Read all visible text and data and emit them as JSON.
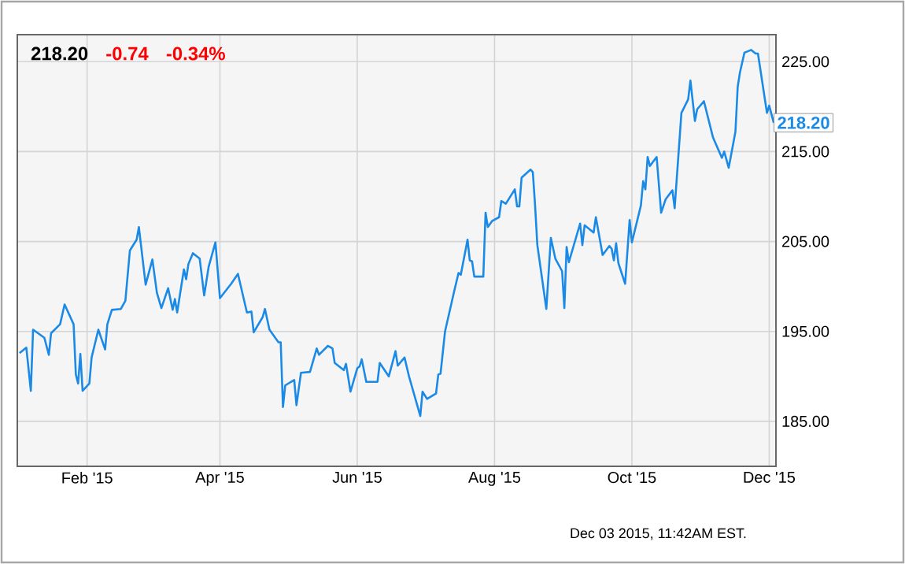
{
  "chart_data": {
    "type": "line",
    "title": "218.20",
    "annotations": [
      "-0.74",
      "-0.34%",
      "Dec 03 2015, 11:42AM EST.",
      {
        "text": "218.20",
        "x": "2015-12-03",
        "y": 218.2
      }
    ],
    "color": "#1a8ae6",
    "grid": true,
    "xlim": [
      "2015-01-01",
      "2015-12-04"
    ],
    "ylim": [
      180,
      228
    ],
    "xticks": [
      {
        "value": "2015-02-01",
        "label": "Feb '15"
      },
      {
        "value": "2015-04-01",
        "label": "Apr '15"
      },
      {
        "value": "2015-06-01",
        "label": "Jun '15"
      },
      {
        "value": "2015-08-01",
        "label": "Aug '15"
      },
      {
        "value": "2015-10-01",
        "label": "Oct '15"
      },
      {
        "value": "2015-12-01",
        "label": "Dec '15"
      }
    ],
    "yticks": [
      {
        "value": 185,
        "label": "185.00"
      },
      {
        "value": 195,
        "label": "195.00"
      },
      {
        "value": 205,
        "label": "205.00"
      },
      {
        "value": 215,
        "label": "215.00"
      },
      {
        "value": 225,
        "label": "225.00"
      }
    ],
    "x": [
      "2015-01-02",
      "2015-01-05",
      "2015-01-07",
      "2015-01-08",
      "2015-01-13",
      "2015-01-15",
      "2015-01-16",
      "2015-01-20",
      "2015-01-22",
      "2015-01-26",
      "2015-01-27",
      "2015-01-28",
      "2015-01-29",
      "2015-01-30",
      "2015-02-02",
      "2015-02-03",
      "2015-02-06",
      "2015-02-09",
      "2015-02-10",
      "2015-02-12",
      "2015-02-16",
      "2015-02-18",
      "2015-02-20",
      "2015-02-23",
      "2015-02-24",
      "2015-02-27",
      "2015-03-02",
      "2015-03-04",
      "2015-03-06",
      "2015-03-09",
      "2015-03-11",
      "2015-03-12",
      "2015-03-13",
      "2015-03-16",
      "2015-03-17",
      "2015-03-18",
      "2015-03-20",
      "2015-03-23",
      "2015-03-25",
      "2015-03-27",
      "2015-03-30",
      "2015-04-01",
      "2015-04-06",
      "2015-04-09",
      "2015-04-13",
      "2015-04-15",
      "2015-04-16",
      "2015-04-20",
      "2015-04-21",
      "2015-04-23",
      "2015-04-27",
      "2015-04-28",
      "2015-04-29",
      "2015-04-30",
      "2015-05-04",
      "2015-05-05",
      "2015-05-07",
      "2015-05-11",
      "2015-05-14",
      "2015-05-15",
      "2015-05-19",
      "2015-05-21",
      "2015-05-22",
      "2015-05-26",
      "2015-05-27",
      "2015-05-29",
      "2015-06-01",
      "2015-06-02",
      "2015-06-03",
      "2015-06-05",
      "2015-06-10",
      "2015-06-11",
      "2015-06-15",
      "2015-06-18",
      "2015-06-19",
      "2015-06-22",
      "2015-06-24",
      "2015-06-29",
      "2015-06-30",
      "2015-07-02",
      "2015-07-06",
      "2015-07-07",
      "2015-07-08",
      "2015-07-10",
      "2015-07-14",
      "2015-07-16",
      "2015-07-17",
      "2015-07-20",
      "2015-07-21",
      "2015-07-22",
      "2015-07-23",
      "2015-07-27",
      "2015-07-28",
      "2015-07-29",
      "2015-07-31",
      "2015-08-03",
      "2015-08-04",
      "2015-08-06",
      "2015-08-10",
      "2015-08-11",
      "2015-08-12",
      "2015-08-13",
      "2015-08-17",
      "2015-08-18",
      "2015-08-19",
      "2015-08-20",
      "2015-08-24",
      "2015-08-26",
      "2015-08-28",
      "2015-08-31",
      "2015-09-01",
      "2015-09-02",
      "2015-09-03",
      "2015-09-08",
      "2015-09-09",
      "2015-09-10",
      "2015-09-14",
      "2015-09-15",
      "2015-09-18",
      "2015-09-21",
      "2015-09-22",
      "2015-09-23",
      "2015-09-24",
      "2015-09-25",
      "2015-09-28",
      "2015-09-30",
      "2015-10-01",
      "2015-10-05",
      "2015-10-06",
      "2015-10-07",
      "2015-10-08",
      "2015-10-09",
      "2015-10-12",
      "2015-10-14",
      "2015-10-16",
      "2015-10-19",
      "2015-10-20",
      "2015-10-23",
      "2015-10-26",
      "2015-10-27",
      "2015-10-29",
      "2015-10-30",
      "2015-11-02",
      "2015-11-06",
      "2015-11-10",
      "2015-11-11",
      "2015-11-13",
      "2015-11-16",
      "2015-11-17",
      "2015-11-18",
      "2015-11-20",
      "2015-11-23",
      "2015-11-25",
      "2015-11-26",
      "2015-11-30",
      "2015-12-01",
      "2015-12-03"
    ],
    "values": [
      192.6,
      193.2,
      188.4,
      195.2,
      194.3,
      192.4,
      194.8,
      195.8,
      198.0,
      195.8,
      190.2,
      189.2,
      192.5,
      188.4,
      189.2,
      192.1,
      195.2,
      193.0,
      195.8,
      197.4,
      197.5,
      198.4,
      204.0,
      205.2,
      206.6,
      200.2,
      203.0,
      199.3,
      197.6,
      199.8,
      197.4,
      198.6,
      197.1,
      201.9,
      200.8,
      202.5,
      203.7,
      203.1,
      199.0,
      202.2,
      204.9,
      198.7,
      200.3,
      201.4,
      197.1,
      197.2,
      194.9,
      196.6,
      197.5,
      195.2,
      193.8,
      193.8,
      186.6,
      189.0,
      189.6,
      186.8,
      190.4,
      190.5,
      193.1,
      192.4,
      193.4,
      193.1,
      191.5,
      190.7,
      191.4,
      188.3,
      190.9,
      191.1,
      191.9,
      189.4,
      189.4,
      191.5,
      190.0,
      192.8,
      191.2,
      192.1,
      190.0,
      185.6,
      188.3,
      187.5,
      188.1,
      190.2,
      190.3,
      195.0,
      199.4,
      201.5,
      201.3,
      205.2,
      202.9,
      202.8,
      201.1,
      201.1,
      208.2,
      206.6,
      207.3,
      207.7,
      209.5,
      209.2,
      210.8,
      208.9,
      208.9,
      212.1,
      213.0,
      212.7,
      209.0,
      204.6,
      197.5,
      205.4,
      203.1,
      201.7,
      197.6,
      204.4,
      202.7,
      207.0,
      204.6,
      206.8,
      206.0,
      207.7,
      203.5,
      204.5,
      204.2,
      202.9,
      204.8,
      202.6,
      200.3,
      207.4,
      204.9,
      209.0,
      211.7,
      210.8,
      214.4,
      213.4,
      214.4,
      208.2,
      209.7,
      210.7,
      208.7,
      219.3,
      220.8,
      222.9,
      218.4,
      219.7,
      220.6,
      216.6,
      214.3,
      215.0,
      213.2,
      217.2,
      222.2,
      223.8,
      226.0,
      226.3,
      225.9,
      225.9,
      219.3,
      220.1,
      218.2
    ]
  }
}
